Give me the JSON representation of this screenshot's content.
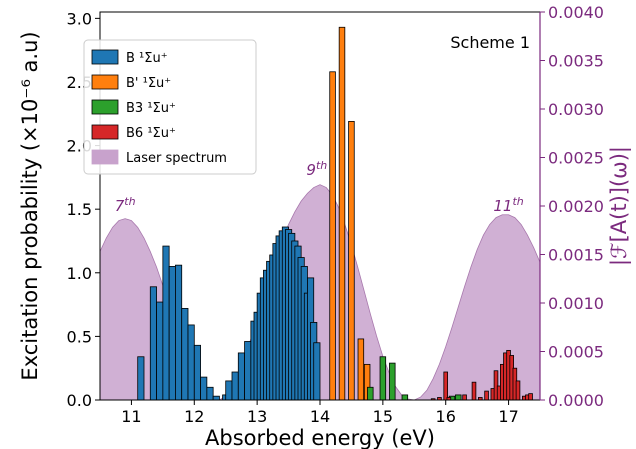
{
  "chart_data": {
    "type": "bar",
    "xlabel": "Absorbed energy (eV)",
    "ylabel": "Excitation probability (×10⁻⁶ a.u)",
    "y2label": "|ℱ[A(t)](ω)|",
    "annotation": "Scheme 1",
    "xlim": [
      10.5,
      17.5
    ],
    "ylim": [
      0,
      3.05
    ],
    "y2lim": [
      0,
      0.004
    ],
    "x_ticks": [
      "11",
      "12",
      "13",
      "14",
      "15",
      "16",
      "17"
    ],
    "y_ticks": [
      "0.0",
      "0.5",
      "1.0",
      "1.5",
      "2.0",
      "2.5",
      "3.0"
    ],
    "y2_ticks": [
      "0.0000",
      "0.0005",
      "0.0010",
      "0.0015",
      "0.0020",
      "0.0025",
      "0.0030",
      "0.0035",
      "0.0040"
    ],
    "legend_position": "upper-left",
    "harmonic_labels": [
      {
        "base": "7",
        "sup": "th",
        "x": 10.9,
        "y2": 0.00195
      },
      {
        "base": "9",
        "sup": "th",
        "x": 13.95,
        "y2": 0.00232
      },
      {
        "base": "11",
        "sup": "th",
        "x": 17.0,
        "y2": 0.00195
      }
    ],
    "laser_spectrum": {
      "name": "Laser spectrum",
      "color": "#c8a2cc",
      "x": [
        10.5,
        10.6,
        10.7,
        10.8,
        10.9,
        11.0,
        11.1,
        11.2,
        11.3,
        11.4,
        11.5,
        11.6,
        11.7,
        11.8,
        11.9,
        12.0,
        12.1,
        12.2,
        12.3,
        12.4,
        12.5,
        12.6,
        12.7,
        12.8,
        12.9,
        13.0,
        13.1,
        13.2,
        13.3,
        13.4,
        13.5,
        13.6,
        13.7,
        13.8,
        13.9,
        14.0,
        14.1,
        14.2,
        14.3,
        14.4,
        14.5,
        14.6,
        14.7,
        14.8,
        14.9,
        15.0,
        15.1,
        15.2,
        15.3,
        15.4,
        15.5,
        15.6,
        15.7,
        15.8,
        15.9,
        16.0,
        16.1,
        16.2,
        16.3,
        16.4,
        16.5,
        16.6,
        16.7,
        16.8,
        16.9,
        17.0,
        17.1,
        17.2,
        17.3,
        17.4,
        17.5
      ],
      "y2": [
        0.00153,
        0.00167,
        0.00178,
        0.00185,
        0.00187,
        0.00185,
        0.00178,
        0.00167,
        0.00153,
        0.00137,
        0.00118,
        0.00098,
        0.00078,
        0.00058,
        0.0004,
        0.00025,
        0.00013,
        5e-05,
        1e-05,
        0.0,
        4e-05,
        0.00012,
        0.00026,
        0.00043,
        0.00063,
        0.00085,
        0.00107,
        0.00128,
        0.00148,
        0.00166,
        0.00181,
        0.00194,
        0.00205,
        0.00213,
        0.00219,
        0.00222,
        0.00219,
        0.00211,
        0.00198,
        0.0018,
        0.0016,
        0.00137,
        0.00113,
        0.00089,
        0.00066,
        0.00045,
        0.00028,
        0.00014,
        5e-05,
        1e-05,
        0.0,
        3e-05,
        0.0001,
        0.00022,
        0.00037,
        0.00055,
        0.00075,
        0.00096,
        0.00117,
        0.00137,
        0.00155,
        0.0017,
        0.00181,
        0.00188,
        0.00191,
        0.00191,
        0.00188,
        0.00181,
        0.0017,
        0.00157,
        0.00142
      ]
    },
    "series": [
      {
        "name": "B ¹Σu⁺",
        "color": "#1f77b4",
        "width": 0.1,
        "x": [
          11.15,
          11.35,
          11.45,
          11.55,
          11.65,
          11.75,
          11.85,
          11.95,
          12.05,
          12.15,
          12.25,
          12.35,
          12.5,
          12.55,
          12.65,
          12.75,
          12.85,
          12.95,
          13.0,
          13.05,
          13.1,
          13.15,
          13.2,
          13.25,
          13.3,
          13.35,
          13.4,
          13.45,
          13.5,
          13.55,
          13.6,
          13.65,
          13.7,
          13.75,
          13.8,
          13.85,
          13.9,
          13.95
        ],
        "values": [
          0.34,
          0.89,
          0.77,
          1.21,
          1.05,
          1.06,
          0.72,
          0.59,
          0.43,
          0.18,
          0.1,
          0.03,
          0.04,
          0.15,
          0.22,
          0.37,
          0.46,
          0.62,
          0.69,
          0.84,
          0.96,
          1.02,
          1.09,
          1.14,
          1.23,
          1.29,
          1.33,
          1.36,
          1.34,
          1.31,
          1.25,
          1.21,
          1.12,
          1.05,
          0.84,
          0.96,
          0.61,
          0.45
        ]
      },
      {
        "name": "B' ¹Σu⁺",
        "color": "#ff7f0e",
        "width": 0.09,
        "x": [
          14.2,
          14.35,
          14.5,
          14.65,
          14.75
        ],
        "values": [
          2.58,
          2.93,
          2.19,
          0.48,
          0.28
        ]
      },
      {
        "name": "B3 ¹Σu⁺",
        "color": "#2ca02c",
        "width": 0.09,
        "x": [
          14.8,
          15.0,
          15.15,
          15.35,
          16.1,
          16.2
        ],
        "values": [
          0.1,
          0.34,
          0.29,
          0.04,
          0.03,
          0.04
        ]
      },
      {
        "name": "B6 ¹Σu⁺",
        "color": "#d62728",
        "width": 0.06,
        "x": [
          15.8,
          15.9,
          16.0,
          16.05,
          16.3,
          16.45,
          16.55,
          16.65,
          16.75,
          16.8,
          16.85,
          16.9,
          16.95,
          17.0,
          17.05,
          17.1,
          17.15,
          17.25,
          17.3,
          17.35
        ],
        "values": [
          0.01,
          0.02,
          0.22,
          0.02,
          0.04,
          0.14,
          0.02,
          0.07,
          0.09,
          0.23,
          0.11,
          0.28,
          0.37,
          0.39,
          0.35,
          0.25,
          0.15,
          0.03,
          0.04,
          0.05
        ]
      }
    ]
  }
}
